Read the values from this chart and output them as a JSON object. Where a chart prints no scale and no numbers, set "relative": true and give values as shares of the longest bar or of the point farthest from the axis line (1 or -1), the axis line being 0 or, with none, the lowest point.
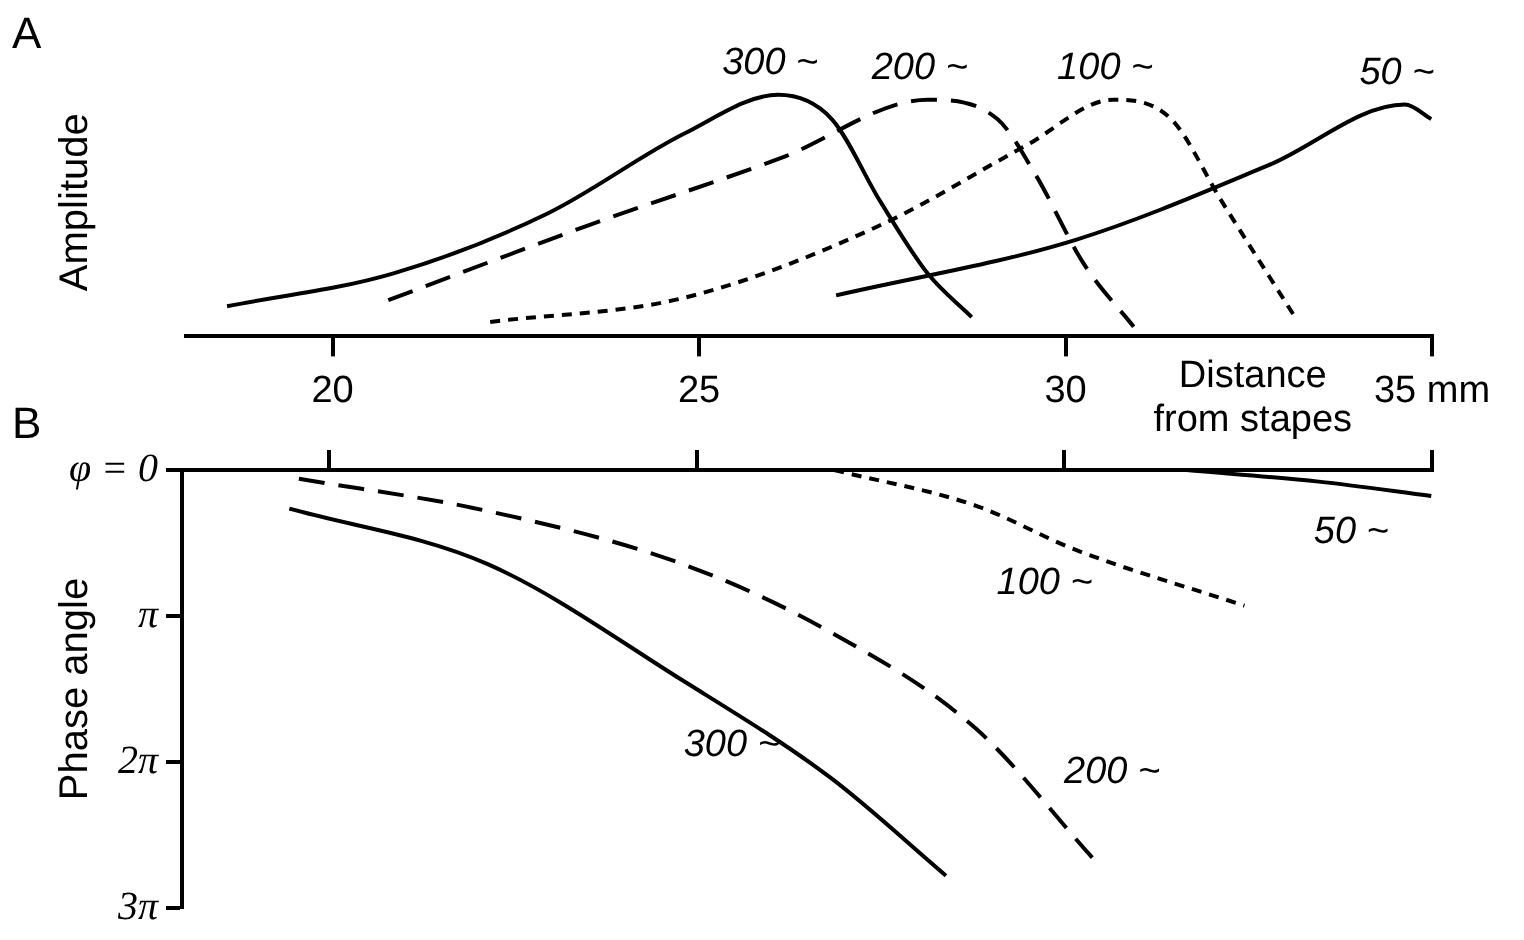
{
  "chart_data": [
    {
      "type": "line",
      "title": "A",
      "xlabel": "Distance from stapes",
      "ylabel": "Amplitude",
      "relative": true,
      "xlim": [
        18,
        35
      ],
      "xticks": [
        20,
        25,
        30,
        {
          "value": 35,
          "label": "35 mm"
        }
      ],
      "tick_labels": "x",
      "grid": false,
      "legend": false,
      "marker": "none",
      "series": [
        {
          "name": "300 ~",
          "color": "#000000",
          "line_style": "solid",
          "x": [
            18.56,
            20.82,
            22.94,
            24.8,
            26.08,
            26.81,
            27.47,
            28.12,
            28.72
          ],
          "values": [
            0.125,
            0.26,
            0.51,
            0.84,
            1,
            0.9,
            0.56,
            0.26,
            0.08
          ]
        },
        {
          "name": "200 ~",
          "color": "#000000",
          "line_style": "dashed",
          "x": [
            20.76,
            23.49,
            26.13,
            28.12,
            29.07,
            29.59,
            30.25,
            30.93
          ],
          "values": [
            0.15,
            0.46,
            0.74,
            0.98,
            0.9,
            0.67,
            0.3,
            0.04
          ]
        },
        {
          "name": "100 ~",
          "color": "#000000",
          "line_style": "dotted",
          "x": [
            22.15,
            24.8,
            27.47,
            29.46,
            30.65,
            31.44,
            32.13,
            33.11
          ],
          "values": [
            0.06,
            0.16,
            0.46,
            0.79,
            0.98,
            0.9,
            0.56,
            0.09
          ]
        },
        {
          "name": "50 ~",
          "color": "#000000",
          "line_style": "solid",
          "x": [
            26.87,
            30.14,
            32.78,
            34.63,
            34.99
          ],
          "values": [
            0.17,
            0.4,
            0.71,
            0.96,
            0.9
          ]
        }
      ]
    },
    {
      "type": "line",
      "title": "B",
      "ylabel": "Phase angle",
      "xlim": [
        18,
        35
      ],
      "xticks": [
        20,
        25,
        30,
        35
      ],
      "ylim": [
        9.4248,
        0
      ],
      "yticks": [
        {
          "value": 0,
          "label": "φ = 0"
        },
        {
          "value": 3.1416,
          "label": "π"
        },
        {
          "value": 6.2832,
          "label": "2π"
        },
        {
          "value": 9.4248,
          "label": "3π"
        }
      ],
      "tick_labels": "y",
      "grid": false,
      "legend": false,
      "marker": "none",
      "series": [
        {
          "name": "300 ~",
          "color": "#000000",
          "line_style": "solid",
          "x": [
            19.46,
            22.15,
            24.8,
            26.81,
            28.39
          ],
          "values": [
            0.83,
            2.02,
            4.52,
            6.61,
            8.73
          ]
        },
        {
          "name": "200 ~",
          "color": "#000000",
          "line_style": "dashed",
          "x": [
            19.59,
            22.15,
            24.8,
            26.81,
            28.8,
            30.38
          ],
          "values": [
            0.19,
            0.88,
            2.02,
            3.48,
            5.57,
            8.34
          ]
        },
        {
          "name": "100 ~",
          "color": "#000000",
          "line_style": "dotted",
          "x": [
            26.87,
            28.8,
            30.14,
            32.45
          ],
          "values": [
            0,
            0.77,
            1.71,
            2.92
          ]
        },
        {
          "name": "50 ~",
          "color": "#000000",
          "line_style": "solid",
          "x": [
            31.66,
            33.46,
            34.99
          ],
          "values": [
            0,
            0.25,
            0.56
          ]
        }
      ]
    }
  ]
}
